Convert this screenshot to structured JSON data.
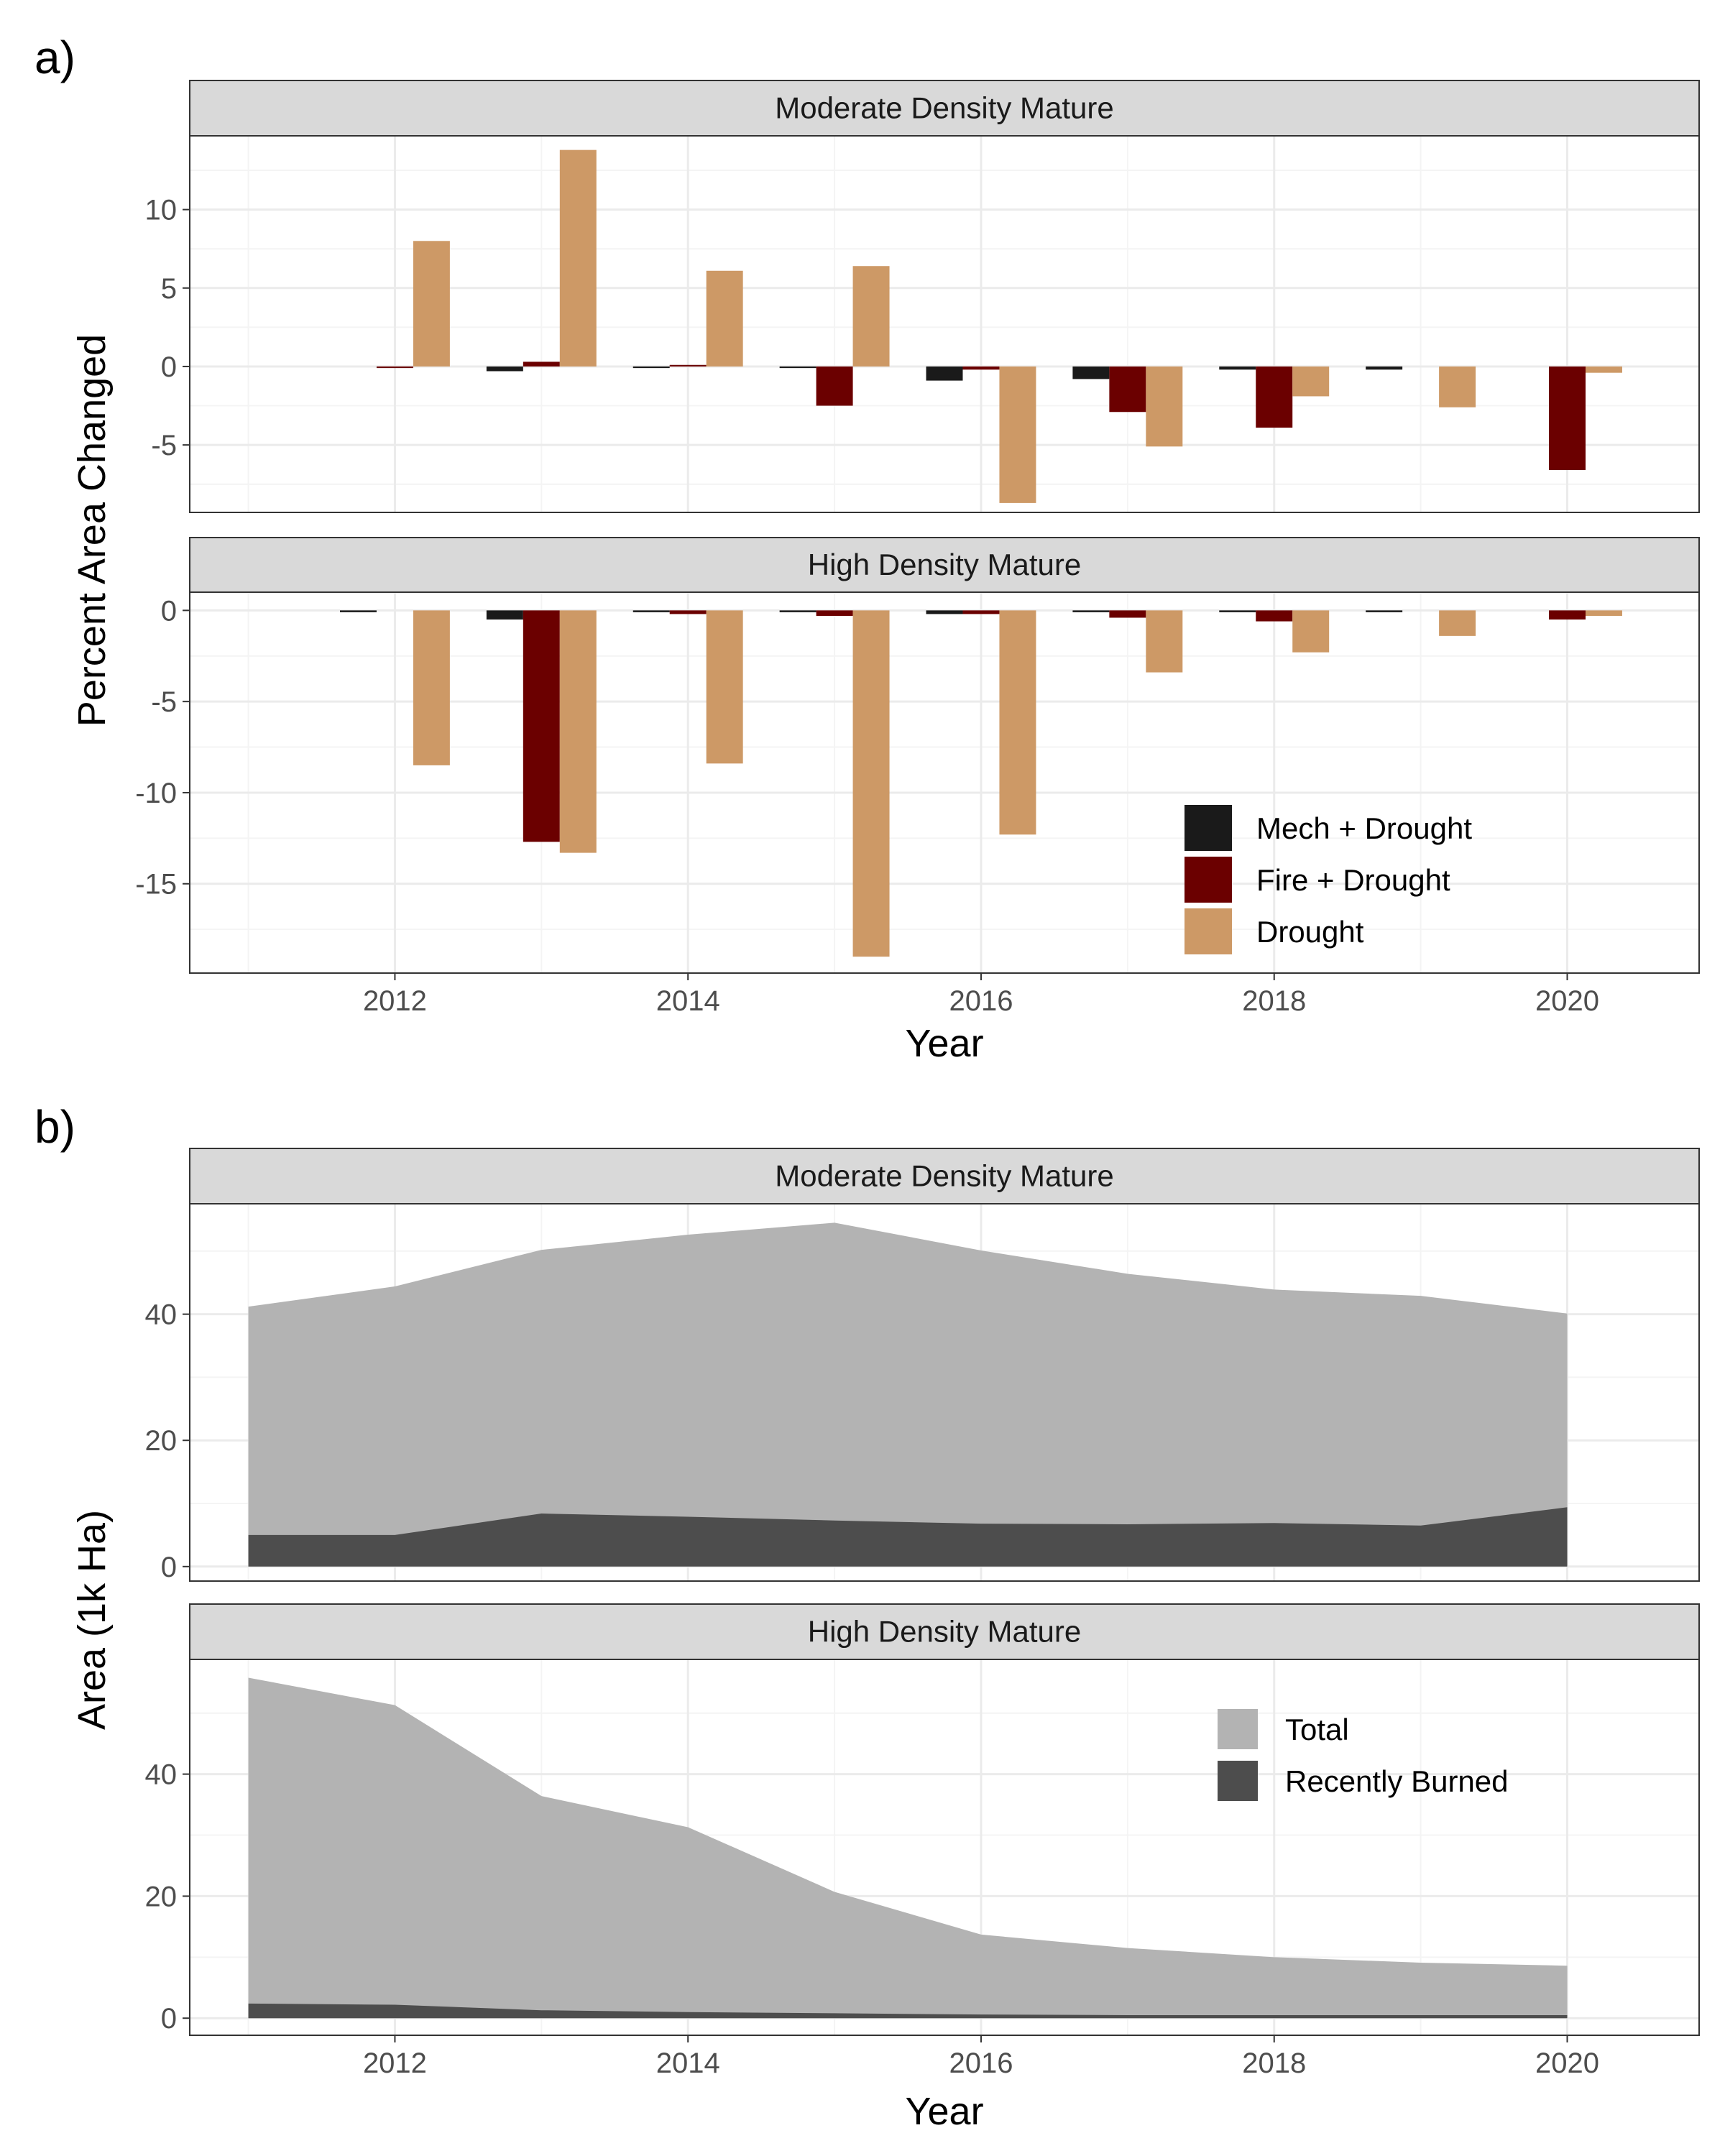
{
  "figure": {
    "panel_a_letter": "a)",
    "panel_b_letter": "b)",
    "a_ylabel": "Percent Area Changed",
    "a_xlabel": "Year",
    "b_ylabel": "Area (1k Ha)",
    "b_xlabel": "Year"
  },
  "chart_data": [
    {
      "type": "bar",
      "panel": "a)",
      "xlabel": "Year",
      "ylabel": "Percent Area Changed",
      "x_ticks": [
        "2012",
        "2014",
        "2016",
        "2018",
        "2020"
      ],
      "xlim": [
        2010.6,
        2020.9
      ],
      "legend_position": "bottom-right of lower facet",
      "series_info": [
        {
          "name": "Mech + Drought",
          "color": "#1a1a1a"
        },
        {
          "name": "Fire + Drought",
          "color": "#6b0000"
        },
        {
          "name": "Drought",
          "color": "#cd9966"
        }
      ],
      "facets": [
        {
          "title": "Moderate Density Mature",
          "ylim": [
            -9.3,
            14.7
          ],
          "y_ticks": [
            10,
            5,
            0,
            -5
          ],
          "y_tick_labels": [
            "10",
            "5",
            "0",
            "-5"
          ],
          "categories": [
            2012,
            2013,
            2014,
            2015,
            2016,
            2017,
            2018,
            2019,
            2020
          ],
          "series": [
            {
              "name": "Mech + Drought",
              "values": [
                0,
                -0.3,
                -0.1,
                -0.1,
                -0.9,
                -0.8,
                -0.2,
                -0.2,
                0
              ]
            },
            {
              "name": "Fire + Drought",
              "values": [
                -0.1,
                0.3,
                0.1,
                -2.5,
                -0.2,
                -2.9,
                -3.9,
                0,
                -6.6
              ]
            },
            {
              "name": "Drought",
              "values": [
                8.0,
                13.8,
                6.1,
                6.4,
                -8.7,
                -5.1,
                -1.9,
                -2.6,
                -0.4
              ]
            }
          ]
        },
        {
          "title": "High Density Mature",
          "ylim": [
            -19.9,
            1.0
          ],
          "y_ticks": [
            0,
            -5,
            -10,
            -15
          ],
          "y_tick_labels": [
            "0",
            "-5",
            "-10",
            "-15"
          ],
          "categories": [
            2012,
            2013,
            2014,
            2015,
            2016,
            2017,
            2018,
            2019,
            2020
          ],
          "series": [
            {
              "name": "Mech + Drought",
              "values": [
                -0.1,
                -0.5,
                -0.1,
                -0.1,
                -0.2,
                -0.1,
                -0.1,
                -0.1,
                0
              ]
            },
            {
              "name": "Fire + Drought",
              "values": [
                0,
                -12.7,
                -0.2,
                -0.3,
                -0.2,
                -0.4,
                -0.6,
                0,
                -0.5
              ]
            },
            {
              "name": "Drought",
              "values": [
                -8.5,
                -13.3,
                -8.4,
                -19.0,
                -12.3,
                -3.4,
                -2.3,
                -1.4,
                -0.3
              ]
            }
          ]
        }
      ]
    },
    {
      "type": "area",
      "panel": "b)",
      "xlabel": "Year",
      "ylabel": "Area (1k Ha)",
      "x_ticks": [
        "2012",
        "2014",
        "2016",
        "2018",
        "2020"
      ],
      "xlim": [
        2010.6,
        2020.9
      ],
      "legend_position": "top-right of lower facet",
      "series_info": [
        {
          "name": "Total",
          "color": "#b3b3b3"
        },
        {
          "name": "Recently Burned",
          "color": "#4d4d4d"
        }
      ],
      "facets": [
        {
          "title": "Moderate Density Mature",
          "ylim": [
            -2.3,
            57.5
          ],
          "y_ticks": [
            40,
            20,
            0
          ],
          "y_tick_labels": [
            "40",
            "20",
            "0"
          ],
          "x": [
            2011,
            2012,
            2013,
            2014,
            2015,
            2016,
            2017,
            2018,
            2019,
            2020
          ],
          "series": [
            {
              "name": "Total",
              "values": [
                41.2,
                44.4,
                50.2,
                52.6,
                54.5,
                50.1,
                46.4,
                43.9,
                42.9,
                40.1
              ]
            },
            {
              "name": "Recently Burned",
              "values": [
                5.0,
                5.0,
                8.4,
                7.9,
                7.3,
                6.8,
                6.7,
                6.9,
                6.5,
                9.4
              ]
            }
          ]
        },
        {
          "title": "High Density Mature",
          "ylim": [
            -2.8,
            58.8
          ],
          "y_ticks": [
            40,
            20,
            0
          ],
          "y_tick_labels": [
            "40",
            "20",
            "0"
          ],
          "x": [
            2011,
            2012,
            2013,
            2014,
            2015,
            2016,
            2017,
            2018,
            2019,
            2020
          ],
          "series": [
            {
              "name": "Total",
              "values": [
                55.8,
                51.3,
                36.4,
                31.3,
                20.7,
                13.7,
                11.5,
                10.0,
                9.1,
                8.6
              ]
            },
            {
              "name": "Recently Burned",
              "values": [
                2.4,
                2.2,
                1.3,
                1.0,
                0.8,
                0.6,
                0.5,
                0.5,
                0.5,
                0.5
              ]
            }
          ]
        }
      ]
    }
  ]
}
